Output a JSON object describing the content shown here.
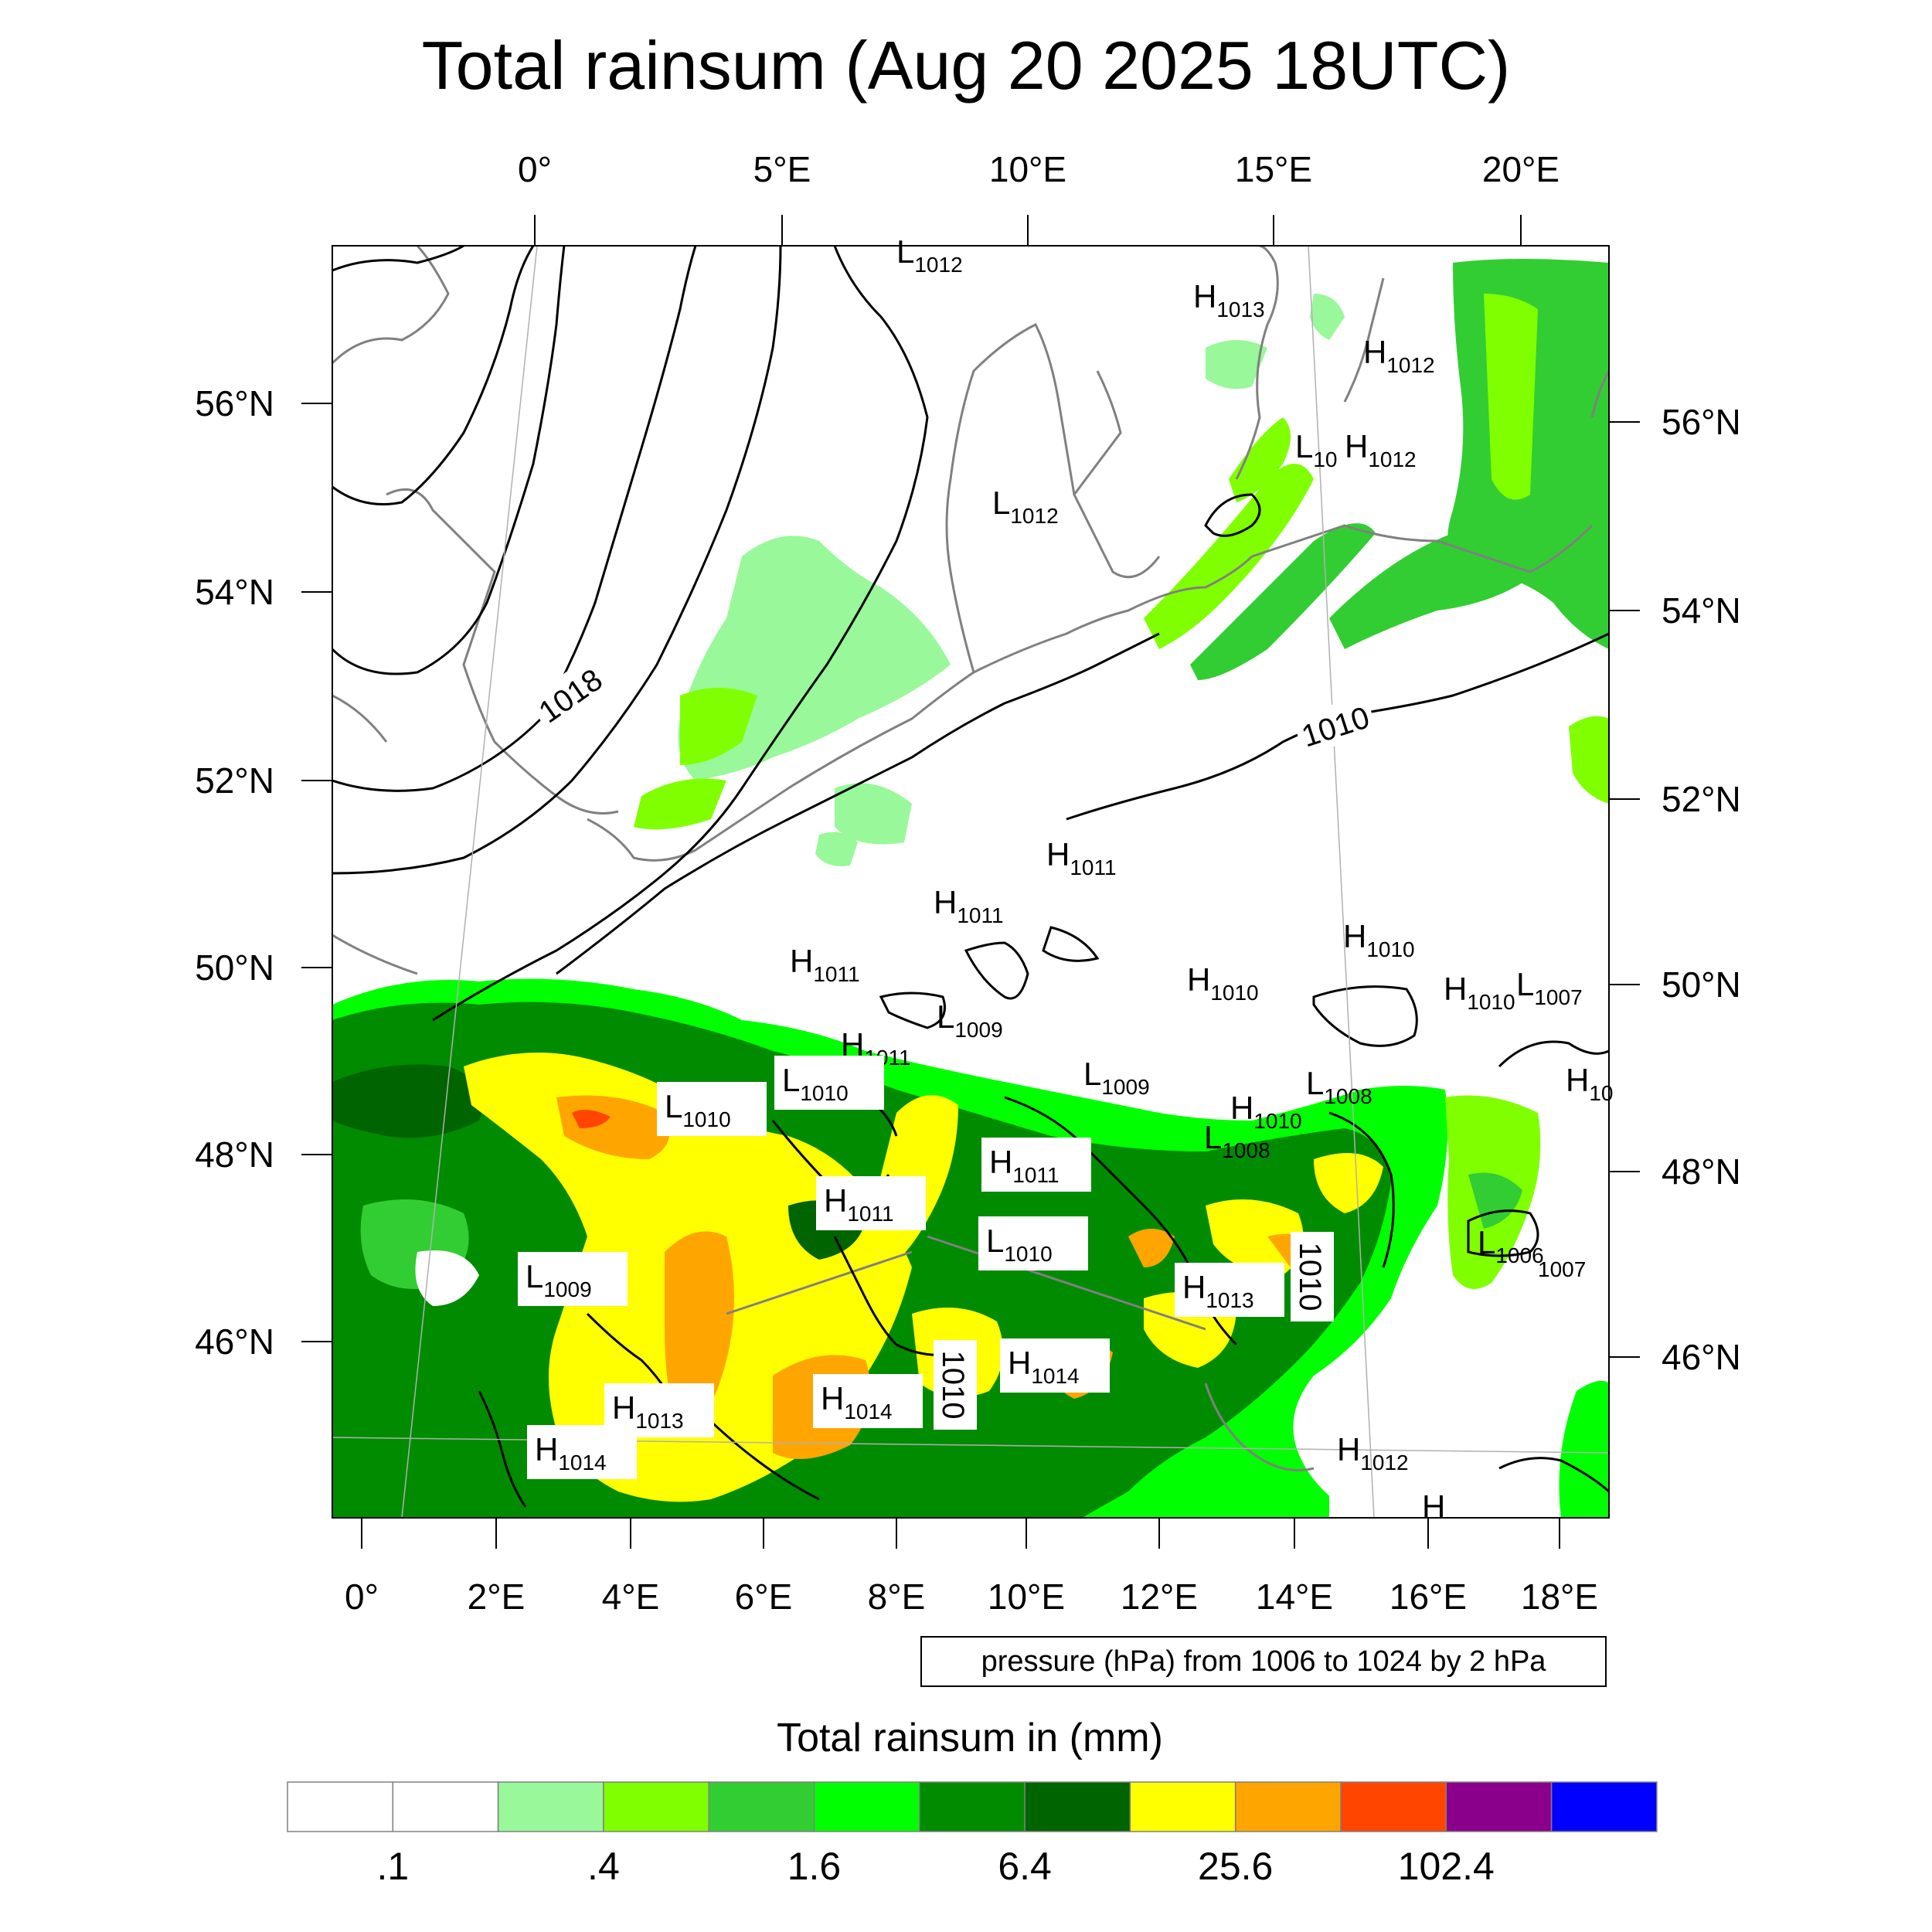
{
  "title": "Total rainsum (Aug 20 2025 18UTC)",
  "top_lon_ticks": [
    "0°",
    "5°E",
    "10°E",
    "15°E",
    "20°E"
  ],
  "bottom_lon_ticks": [
    "0°",
    "2°E",
    "4°E",
    "6°E",
    "8°E",
    "10°E",
    "12°E",
    "14°E",
    "16°E",
    "18°E"
  ],
  "left_lat_ticks": [
    "56°N",
    "54°N",
    "52°N",
    "50°N",
    "48°N",
    "46°N"
  ],
  "right_lat_ticks": [
    "56°N",
    "54°N",
    "52°N",
    "50°N",
    "48°N",
    "46°N"
  ],
  "pressure_note": "pressure (hPa) from 1006 to 1024 by 2 hPa",
  "colorbar": {
    "title": "Total rainsum in (mm)",
    "colors": [
      "#ffffff",
      "#ffffff",
      "#99f899",
      "#80ff00",
      "#32cd32",
      "#00ff00",
      "#008b00",
      "#006400",
      "#ffff00",
      "#ffa500",
      "#ff4500",
      "#8b008b",
      "#0000ff"
    ],
    "labels": [
      ".1",
      ".4",
      "1.6",
      "6.4",
      "25.6",
      "102.4"
    ]
  },
  "isobar_labels": [
    "1018",
    "1010",
    "1010",
    "1010"
  ],
  "pressure_centers": [
    {
      "t": "L",
      "v": "1012"
    },
    {
      "t": "H",
      "v": "1013"
    },
    {
      "t": "H",
      "v": "1012"
    },
    {
      "t": "L",
      "v": "10"
    },
    {
      "t": "H",
      "v": "1012"
    },
    {
      "t": "L",
      "v": "1012"
    },
    {
      "t": "H",
      "v": "1011"
    },
    {
      "t": "H",
      "v": "1011"
    },
    {
      "t": "H",
      "v": "1010"
    },
    {
      "t": "H",
      "v": "1011"
    },
    {
      "t": "H",
      "v": "1010"
    },
    {
      "t": "H",
      "v": "1010"
    },
    {
      "t": "L",
      "v": "1007"
    },
    {
      "t": "L",
      "v": "1009"
    },
    {
      "t": "H",
      "v": "1011"
    },
    {
      "t": "L",
      "v": "1009"
    },
    {
      "t": "L",
      "v": "1008"
    },
    {
      "t": "L",
      "v": "1010"
    },
    {
      "t": "H",
      "v": "1010"
    },
    {
      "t": "L",
      "v": "1008"
    },
    {
      "t": "H",
      "v": "10"
    },
    {
      "t": "L",
      "v": "1010"
    },
    {
      "t": "H",
      "v": "1011"
    },
    {
      "t": "H",
      "v": "1011"
    },
    {
      "t": "L",
      "v": "1010"
    },
    {
      "t": "L",
      "v": "1006"
    },
    {
      "t": "",
      "v": "1007"
    },
    {
      "t": "L",
      "v": "1009"
    },
    {
      "t": "H",
      "v": "1013"
    },
    {
      "t": "H",
      "v": "1014"
    },
    {
      "t": "H",
      "v": "1013"
    },
    {
      "t": "H",
      "v": "1014"
    },
    {
      "t": "H",
      "v": "1014"
    },
    {
      "t": "H",
      "v": "1012"
    },
    {
      "t": "H",
      "v": ""
    }
  ]
}
